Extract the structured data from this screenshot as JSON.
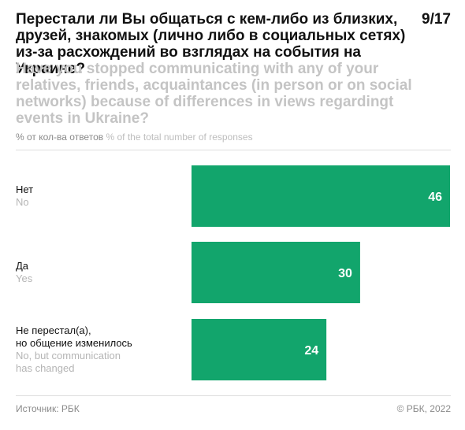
{
  "header": {
    "title_ru": "Перестали ли Вы общаться с кем-либо из близких, друзей, знакомых (лично либо в социальных сетях) из-за расхождений во взглядах на события на Украине?",
    "title_en": "Have you stopped communicating with any of your relatives, friends, acquaintances (in person or on social networks) because of differences in views regardingt events in Ukraine?",
    "page": "9/17"
  },
  "units": {
    "ru": "% от кол-ва ответов",
    "en": "% of the total number of responses"
  },
  "chart_data": {
    "type": "bar",
    "orientation": "horizontal",
    "categories": [
      {
        "ru": [
          "Нет"
        ],
        "en": [
          "No"
        ]
      },
      {
        "ru": [
          "Да"
        ],
        "en": [
          "Yes"
        ]
      },
      {
        "ru": [
          "Не перестал(а),",
          "но общение изменилось"
        ],
        "en": [
          "No, but communication",
          "has changed"
        ]
      }
    ],
    "values": [
      46,
      30,
      24
    ],
    "xlim": [
      0,
      46
    ],
    "grid": false,
    "bar_color": "#12a56c"
  },
  "footer": {
    "source": "Источник: РБК",
    "copyright": "© РБК, 2022"
  }
}
